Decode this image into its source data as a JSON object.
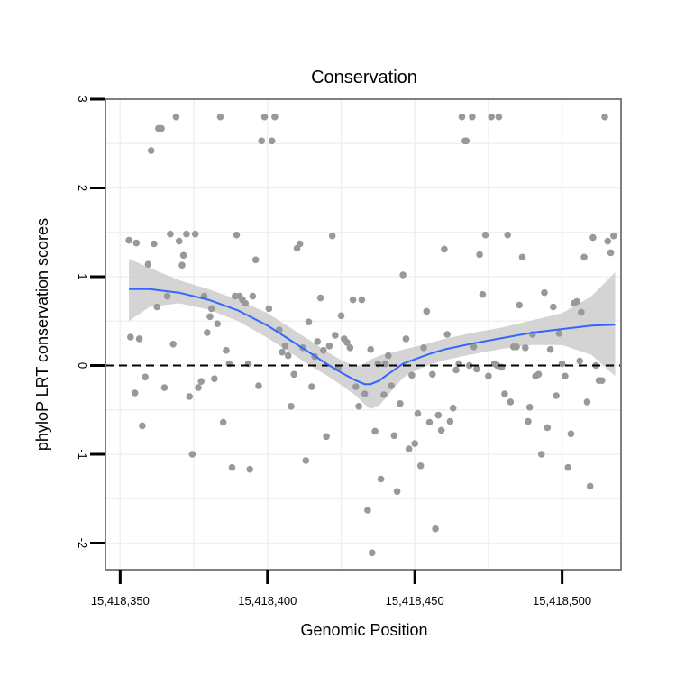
{
  "chart_data": {
    "type": "scatter",
    "title": "Conservation",
    "xlabel": "Genomic Position",
    "ylabel": "phyloP LRT conservation scores",
    "xlim": [
      15418345,
      15418520
    ],
    "ylim": [
      -2.3,
      3.0
    ],
    "x_ticks": [
      15418350,
      15418400,
      15418450,
      15418500
    ],
    "x_tick_labels": [
      "15,418,350",
      "15,418,400",
      "15,418,450",
      "15,418,500"
    ],
    "y_ticks": [
      -2,
      -1,
      0,
      1,
      2,
      3
    ],
    "y_tick_labels": [
      "-2",
      "-1",
      "0",
      "1",
      "2",
      "3"
    ],
    "reference_line": {
      "y": 0,
      "style": "dashed",
      "color": "#000000"
    },
    "grid": true,
    "legend": "none",
    "colors": {
      "points": "#999999",
      "smooth": "#3366FF",
      "band": "#cccccc",
      "frame": "#7f7f7f"
    },
    "points": [
      [
        15418353,
        1.41
      ],
      [
        15418353.5,
        0.32
      ],
      [
        15418355,
        -0.31
      ],
      [
        15418355.5,
        1.38
      ],
      [
        15418356.5,
        0.3
      ],
      [
        15418357.5,
        -0.68
      ],
      [
        15418358.5,
        -0.13
      ],
      [
        15418359.5,
        1.14
      ],
      [
        15418360.5,
        2.42
      ],
      [
        15418361.5,
        1.37
      ],
      [
        15418362.5,
        0.66
      ],
      [
        15418363,
        2.67
      ],
      [
        15418364,
        2.67
      ],
      [
        15418365,
        -0.25
      ],
      [
        15418366,
        0.78
      ],
      [
        15418367,
        1.48
      ],
      [
        15418368,
        0.24
      ],
      [
        15418369,
        2.8
      ],
      [
        15418370,
        1.4
      ],
      [
        15418371,
        1.13
      ],
      [
        15418371.5,
        1.24
      ],
      [
        15418372.5,
        1.48
      ],
      [
        15418373.5,
        -0.35
      ],
      [
        15418374.5,
        -1.0
      ],
      [
        15418375.5,
        1.48
      ],
      [
        15418376.5,
        -0.25
      ],
      [
        15418377.5,
        -0.18
      ],
      [
        15418378.5,
        0.78
      ],
      [
        15418379.5,
        0.37
      ],
      [
        15418380.5,
        0.55
      ],
      [
        15418381,
        0.64
      ],
      [
        15418382,
        -0.15
      ],
      [
        15418383,
        0.47
      ],
      [
        15418384,
        2.8
      ],
      [
        15418385,
        -0.64
      ],
      [
        15418386,
        0.17
      ],
      [
        15418387,
        0.02
      ],
      [
        15418388,
        -1.15
      ],
      [
        15418389,
        0.78
      ],
      [
        15418389.5,
        1.47
      ],
      [
        15418390.5,
        0.78
      ],
      [
        15418391.5,
        0.74
      ],
      [
        15418392.5,
        0.7
      ],
      [
        15418393.5,
        0.02
      ],
      [
        15418394,
        -1.17
      ],
      [
        15418395,
        0.78
      ],
      [
        15418396,
        1.19
      ],
      [
        15418397,
        -0.23
      ],
      [
        15418398,
        2.53
      ],
      [
        15418399,
        2.8
      ],
      [
        15418400.5,
        0.64
      ],
      [
        15418401.5,
        2.53
      ],
      [
        15418402.5,
        2.8
      ],
      [
        15418404,
        0.4
      ],
      [
        15418405,
        0.15
      ],
      [
        15418406,
        0.22
      ],
      [
        15418407,
        0.11
      ],
      [
        15418408,
        -0.46
      ],
      [
        15418409,
        -0.1
      ],
      [
        15418410,
        1.32
      ],
      [
        15418411,
        1.37
      ],
      [
        15418412,
        0.2
      ],
      [
        15418413,
        -1.07
      ],
      [
        15418414,
        0.49
      ],
      [
        15418415,
        -0.24
      ],
      [
        15418416,
        0.1
      ],
      [
        15418417,
        0.27
      ],
      [
        15418418,
        0.76
      ],
      [
        15418419,
        0.17
      ],
      [
        15418420,
        -0.8
      ],
      [
        15418421,
        0.22
      ],
      [
        15418422,
        1.46
      ],
      [
        15418423,
        0.34
      ],
      [
        15418424,
        -0.03
      ],
      [
        15418425,
        0.56
      ],
      [
        15418426,
        0.3
      ],
      [
        15418427,
        0.26
      ],
      [
        15418428,
        0.2
      ],
      [
        15418429,
        0.74
      ],
      [
        15418430,
        -0.24
      ],
      [
        15418431,
        -0.46
      ],
      [
        15418432,
        0.74
      ],
      [
        15418433,
        -0.32
      ],
      [
        15418434,
        -1.63
      ],
      [
        15418435,
        0.18
      ],
      [
        15418435.5,
        -2.11
      ],
      [
        15418436.5,
        -0.74
      ],
      [
        15418437.5,
        0.02
      ],
      [
        15418438.5,
        -1.28
      ],
      [
        15418439.5,
        -0.33
      ],
      [
        15418440,
        0.02
      ],
      [
        15418441,
        0.11
      ],
      [
        15418442,
        -0.23
      ],
      [
        15418443,
        -0.79
      ],
      [
        15418444,
        -1.42
      ],
      [
        15418445,
        -0.43
      ],
      [
        15418446,
        1.02
      ],
      [
        15418447,
        0.3
      ],
      [
        15418448,
        -0.94
      ],
      [
        15418449,
        -0.11
      ],
      [
        15418450,
        -0.88
      ],
      [
        15418451,
        -0.54
      ],
      [
        15418452,
        -1.13
      ],
      [
        15418453,
        0.2
      ],
      [
        15418454,
        0.61
      ],
      [
        15418455,
        -0.64
      ],
      [
        15418456,
        -0.1
      ],
      [
        15418457,
        -1.84
      ],
      [
        15418458,
        -0.56
      ],
      [
        15418459,
        -0.73
      ],
      [
        15418460,
        1.31
      ],
      [
        15418461,
        0.35
      ],
      [
        15418462,
        -0.63
      ],
      [
        15418463,
        -0.48
      ],
      [
        15418464,
        -0.05
      ],
      [
        15418465,
        0.02
      ],
      [
        15418466,
        2.8
      ],
      [
        15418467,
        2.53
      ],
      [
        15418467.5,
        2.53
      ],
      [
        15418468.5,
        0.0
      ],
      [
        15418469.5,
        2.8
      ],
      [
        15418470,
        0.21
      ],
      [
        15418471,
        -0.04
      ],
      [
        15418472,
        1.25
      ],
      [
        15418473,
        0.8
      ],
      [
        15418474,
        1.47
      ],
      [
        15418475,
        -0.12
      ],
      [
        15418476,
        2.8
      ],
      [
        15418477,
        0.02
      ],
      [
        15418478,
        0.0
      ],
      [
        15418478.5,
        2.8
      ],
      [
        15418479.5,
        -0.02
      ],
      [
        15418480.5,
        -0.32
      ],
      [
        15418481.5,
        1.47
      ],
      [
        15418482.5,
        -0.41
      ],
      [
        15418483.5,
        0.21
      ],
      [
        15418484.5,
        0.21
      ],
      [
        15418485.5,
        0.68
      ],
      [
        15418486.5,
        1.22
      ],
      [
        15418487.5,
        0.2
      ],
      [
        15418488.5,
        -0.63
      ],
      [
        15418489,
        -0.47
      ],
      [
        15418490,
        0.35
      ],
      [
        15418491,
        -0.12
      ],
      [
        15418492,
        -0.1
      ],
      [
        15418493,
        -1.0
      ],
      [
        15418494,
        0.82
      ],
      [
        15418495,
        -0.7
      ],
      [
        15418496,
        0.18
      ],
      [
        15418497,
        0.66
      ],
      [
        15418498,
        -0.34
      ],
      [
        15418499,
        0.36
      ],
      [
        15418500,
        0.02
      ],
      [
        15418501,
        -0.12
      ],
      [
        15418502,
        -1.15
      ],
      [
        15418503,
        -0.77
      ],
      [
        15418504,
        0.7
      ],
      [
        15418505,
        0.72
      ],
      [
        15418506,
        0.05
      ],
      [
        15418506.5,
        0.6
      ],
      [
        15418507.5,
        1.22
      ],
      [
        15418508.5,
        -0.41
      ],
      [
        15418509.5,
        -1.36
      ],
      [
        15418510.5,
        1.44
      ],
      [
        15418511.5,
        0.0
      ],
      [
        15418512.5,
        -0.17
      ],
      [
        15418513.5,
        -0.17
      ],
      [
        15418514.5,
        2.8
      ],
      [
        15418515.5,
        1.4
      ],
      [
        15418516.5,
        1.27
      ],
      [
        15418517.5,
        1.46
      ]
    ],
    "smooth": {
      "x": [
        15418353,
        15418360,
        15418370,
        15418380,
        15418390,
        15418400,
        15418408,
        15418415,
        15418420,
        15418425,
        15418430,
        15418433,
        15418435,
        15418438,
        15418440,
        15418443,
        15418446,
        15418450,
        15418455,
        15418460,
        15418470,
        15418480,
        15418490,
        15418500,
        15418510,
        15418518
      ],
      "y": [
        0.86,
        0.86,
        0.82,
        0.74,
        0.62,
        0.45,
        0.28,
        0.13,
        0.02,
        -0.08,
        -0.17,
        -0.21,
        -0.21,
        -0.17,
        -0.12,
        -0.05,
        0.02,
        0.07,
        0.13,
        0.18,
        0.25,
        0.31,
        0.37,
        0.41,
        0.45,
        0.46
      ],
      "lower": [
        0.5,
        0.66,
        0.7,
        0.63,
        0.5,
        0.31,
        0.14,
        -0.01,
        -0.11,
        -0.22,
        -0.34,
        -0.44,
        -0.49,
        -0.45,
        -0.37,
        -0.25,
        -0.14,
        -0.06,
        0.01,
        0.06,
        0.13,
        0.19,
        0.23,
        0.23,
        0.12,
        -0.12
      ],
      "upper": [
        1.2,
        1.1,
        0.96,
        0.86,
        0.74,
        0.59,
        0.42,
        0.27,
        0.16,
        0.06,
        -0.01,
        0.02,
        0.07,
        0.11,
        0.13,
        0.15,
        0.18,
        0.21,
        0.25,
        0.3,
        0.37,
        0.43,
        0.51,
        0.59,
        0.78,
        1.05
      ]
    }
  }
}
